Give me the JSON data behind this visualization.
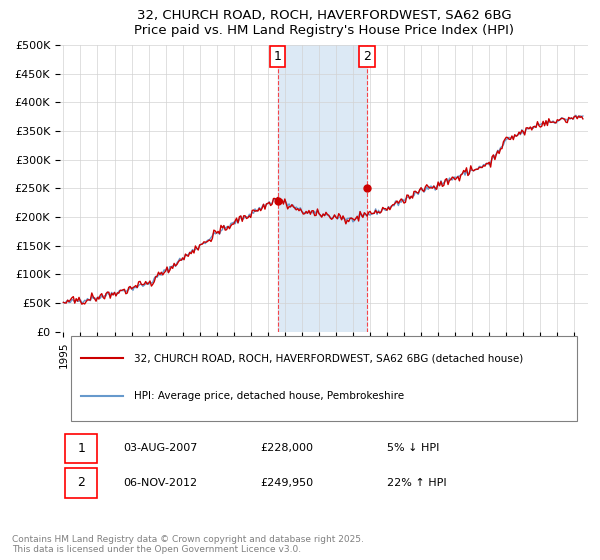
{
  "title": "32, CHURCH ROAD, ROCH, HAVERFORDWEST, SA62 6BG",
  "subtitle": "Price paid vs. HM Land Registry's House Price Index (HPI)",
  "ylabel": "",
  "xlabel": "",
  "ylim": [
    0,
    500000
  ],
  "yticks": [
    0,
    50000,
    100000,
    150000,
    200000,
    250000,
    300000,
    350000,
    400000,
    450000,
    500000
  ],
  "ytick_labels": [
    "£0",
    "£50K",
    "£100K",
    "£150K",
    "£200K",
    "£250K",
    "£300K",
    "£350K",
    "£400K",
    "£450K",
    "£500K"
  ],
  "hpi_color": "#6699cc",
  "price_color": "#cc0000",
  "sale1_date": "03-AUG-2007",
  "sale1_price": 228000,
  "sale1_pct": "5%",
  "sale1_dir": "↓",
  "sale2_date": "06-NOV-2012",
  "sale2_price": 249950,
  "sale2_pct": "22%",
  "sale2_dir": "↑",
  "legend_address": "32, CHURCH ROAD, ROCH, HAVERFORDWEST, SA62 6BG (detached house)",
  "legend_hpi": "HPI: Average price, detached house, Pembrokeshire",
  "footnote": "Contains HM Land Registry data © Crown copyright and database right 2025.\nThis data is licensed under the Open Government Licence v3.0.",
  "annotation1_label": "1",
  "annotation2_label": "2",
  "background_color": "#f0f4f8",
  "highlight_color": "#dce9f5"
}
